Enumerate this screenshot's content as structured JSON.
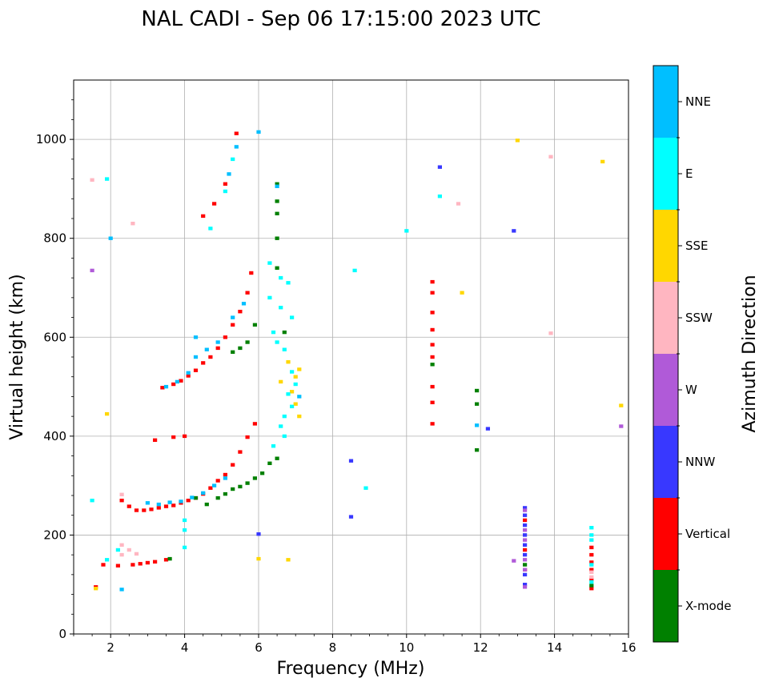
{
  "chart_data": {
    "type": "scatter",
    "title": "NAL CADI - Sep 06 17:15:00 2023 UTC",
    "xlabel": "Frequency (MHz)",
    "ylabel": "Virtual height (km)",
    "xlim": [
      1,
      16
    ],
    "ylim": [
      0,
      1120
    ],
    "xticks": [
      2,
      4,
      6,
      8,
      10,
      12,
      14,
      16
    ],
    "yticks": [
      0,
      200,
      400,
      600,
      800,
      1000
    ],
    "grid": true,
    "colorbar": {
      "label": "Azimuth Direction",
      "categories": [
        {
          "name": "X-mode",
          "color": "#008000"
        },
        {
          "name": "Vertical",
          "color": "#ff0000"
        },
        {
          "name": "NNW",
          "color": "#3838ff"
        },
        {
          "name": "W",
          "color": "#b05ad8"
        },
        {
          "name": "SSW",
          "color": "#ffb6c1"
        },
        {
          "name": "SSE",
          "color": "#ffd700"
        },
        {
          "name": "E",
          "color": "#00ffff"
        },
        {
          "name": "NNE",
          "color": "#00bfff"
        }
      ]
    },
    "series": [
      {
        "name": "Vertical",
        "color": "#ff0000",
        "points": [
          [
            1.6,
            95
          ],
          [
            1.8,
            140
          ],
          [
            2.2,
            138
          ],
          [
            2.3,
            270
          ],
          [
            2.5,
            258
          ],
          [
            2.7,
            250
          ],
          [
            2.9,
            250
          ],
          [
            3.1,
            252
          ],
          [
            3.3,
            255
          ],
          [
            3.5,
            258
          ],
          [
            3.7,
            260
          ],
          [
            3.9,
            265
          ],
          [
            4.1,
            270
          ],
          [
            4.3,
            275
          ],
          [
            4.5,
            283
          ],
          [
            4.7,
            295
          ],
          [
            4.9,
            310
          ],
          [
            5.1,
            322
          ],
          [
            5.3,
            342
          ],
          [
            5.5,
            368
          ],
          [
            5.7,
            398
          ],
          [
            5.9,
            425
          ],
          [
            2.6,
            140
          ],
          [
            2.8,
            142
          ],
          [
            3.0,
            144
          ],
          [
            3.2,
            146
          ],
          [
            3.5,
            150
          ],
          [
            3.4,
            498
          ],
          [
            3.7,
            505
          ],
          [
            3.9,
            512
          ],
          [
            4.1,
            522
          ],
          [
            4.3,
            533
          ],
          [
            4.5,
            548
          ],
          [
            4.7,
            560
          ],
          [
            4.9,
            578
          ],
          [
            5.1,
            600
          ],
          [
            5.3,
            625
          ],
          [
            5.5,
            652
          ],
          [
            5.7,
            690
          ],
          [
            5.8,
            730
          ],
          [
            4.5,
            845
          ],
          [
            4.8,
            870
          ],
          [
            5.1,
            910
          ],
          [
            5.4,
            1012
          ],
          [
            10.7,
            712
          ],
          [
            10.7,
            690
          ],
          [
            10.7,
            650
          ],
          [
            10.7,
            615
          ],
          [
            10.7,
            585
          ],
          [
            10.7,
            560
          ],
          [
            10.7,
            500
          ],
          [
            10.7,
            468
          ],
          [
            10.7,
            425
          ],
          [
            13.2,
            230
          ],
          [
            13.2,
            170
          ],
          [
            13.2,
            130
          ],
          [
            15.0,
            175
          ],
          [
            15.0,
            160
          ],
          [
            15.0,
            145
          ],
          [
            15.0,
            130
          ],
          [
            15.0,
            110
          ],
          [
            15.0,
            92
          ],
          [
            4.0,
            400
          ],
          [
            3.7,
            398
          ],
          [
            3.2,
            392
          ]
        ]
      },
      {
        "name": "X-mode",
        "color": "#008000",
        "points": [
          [
            4.3,
            275
          ],
          [
            4.6,
            262
          ],
          [
            4.9,
            275
          ],
          [
            5.1,
            283
          ],
          [
            5.3,
            293
          ],
          [
            5.5,
            298
          ],
          [
            5.7,
            305
          ],
          [
            5.9,
            315
          ],
          [
            6.1,
            325
          ],
          [
            6.3,
            345
          ],
          [
            6.5,
            355
          ],
          [
            5.3,
            570
          ],
          [
            5.5,
            578
          ],
          [
            5.7,
            590
          ],
          [
            5.9,
            625
          ],
          [
            6.5,
            910
          ],
          [
            6.5,
            875
          ],
          [
            6.5,
            850
          ],
          [
            6.5,
            800
          ],
          [
            6.5,
            740
          ],
          [
            6.7,
            610
          ],
          [
            10.7,
            545
          ],
          [
            11.9,
            492
          ],
          [
            11.9,
            465
          ],
          [
            11.9,
            372
          ],
          [
            3.6,
            152
          ],
          [
            15.0,
            98
          ],
          [
            13.2,
            140
          ]
        ]
      },
      {
        "name": "NNW",
        "color": "#3838ff",
        "points": [
          [
            13.2,
            255
          ],
          [
            13.2,
            240
          ],
          [
            13.2,
            220
          ],
          [
            13.2,
            200
          ],
          [
            13.2,
            180
          ],
          [
            13.2,
            160
          ],
          [
            13.2,
            120
          ],
          [
            13.2,
            100
          ],
          [
            8.5,
            237
          ],
          [
            8.5,
            350
          ],
          [
            12.9,
            815
          ],
          [
            10.9,
            944
          ],
          [
            6.0,
            202
          ],
          [
            12.2,
            415
          ]
        ]
      },
      {
        "name": "W",
        "color": "#b05ad8",
        "points": [
          [
            13.2,
            250
          ],
          [
            13.2,
            210
          ],
          [
            13.2,
            190
          ],
          [
            13.2,
            150
          ],
          [
            13.2,
            130
          ],
          [
            13.2,
            95
          ],
          [
            12.9,
            148
          ],
          [
            15.8,
            420
          ],
          [
            1.5,
            735
          ]
        ]
      },
      {
        "name": "SSW",
        "color": "#ffb6c1",
        "points": [
          [
            2.3,
            180
          ],
          [
            2.5,
            170
          ],
          [
            2.3,
            160
          ],
          [
            2.7,
            162
          ],
          [
            15.0,
            125
          ],
          [
            15.0,
            115
          ],
          [
            13.9,
            965
          ],
          [
            13.9,
            608
          ],
          [
            11.4,
            870
          ],
          [
            2.6,
            830
          ],
          [
            1.5,
            918
          ],
          [
            2.3,
            282
          ]
        ]
      },
      {
        "name": "SSE",
        "color": "#ffd700",
        "points": [
          [
            6.9,
            490
          ],
          [
            7.0,
            465
          ],
          [
            7.1,
            440
          ],
          [
            7.0,
            520
          ],
          [
            6.8,
            550
          ],
          [
            7.1,
            535
          ],
          [
            6.6,
            510
          ],
          [
            6.0,
            152
          ],
          [
            6.8,
            150
          ],
          [
            15.3,
            955
          ],
          [
            13.0,
            998
          ],
          [
            15.8,
            462
          ],
          [
            11.5,
            690
          ],
          [
            1.6,
            92
          ],
          [
            1.9,
            445
          ]
        ]
      },
      {
        "name": "E",
        "color": "#00ffff",
        "points": [
          [
            6.3,
            750
          ],
          [
            6.6,
            720
          ],
          [
            6.8,
            710
          ],
          [
            6.3,
            680
          ],
          [
            6.6,
            660
          ],
          [
            6.9,
            640
          ],
          [
            6.4,
            610
          ],
          [
            6.5,
            590
          ],
          [
            6.7,
            575
          ],
          [
            6.9,
            530
          ],
          [
            7.0,
            505
          ],
          [
            6.8,
            485
          ],
          [
            6.9,
            460
          ],
          [
            6.7,
            440
          ],
          [
            6.6,
            420
          ],
          [
            6.7,
            400
          ],
          [
            6.4,
            380
          ],
          [
            15.0,
            215
          ],
          [
            15.0,
            200
          ],
          [
            15.0,
            190
          ],
          [
            15.0,
            140
          ],
          [
            15.0,
            105
          ],
          [
            4.0,
            230
          ],
          [
            4.0,
            210
          ],
          [
            4.0,
            175
          ],
          [
            2.2,
            170
          ],
          [
            1.9,
            150
          ],
          [
            5.3,
            960
          ],
          [
            5.1,
            895
          ],
          [
            4.7,
            820
          ],
          [
            10.0,
            815
          ],
          [
            10.9,
            885
          ],
          [
            8.9,
            295
          ],
          [
            8.6,
            735
          ],
          [
            1.5,
            270
          ],
          [
            1.9,
            920
          ]
        ]
      },
      {
        "name": "NNE",
        "color": "#00bfff",
        "points": [
          [
            3.0,
            265
          ],
          [
            3.3,
            262
          ],
          [
            3.6,
            266
          ],
          [
            3.9,
            268
          ],
          [
            4.2,
            276
          ],
          [
            4.5,
            285
          ],
          [
            4.8,
            300
          ],
          [
            5.1,
            315
          ],
          [
            3.5,
            500
          ],
          [
            3.8,
            510
          ],
          [
            4.1,
            528
          ],
          [
            4.3,
            560
          ],
          [
            4.3,
            600
          ],
          [
            4.6,
            575
          ],
          [
            4.9,
            590
          ],
          [
            5.3,
            640
          ],
          [
            5.6,
            668
          ],
          [
            5.4,
            985
          ],
          [
            5.2,
            930
          ],
          [
            6.5,
            905
          ],
          [
            6.0,
            1015
          ],
          [
            2.3,
            90
          ],
          [
            2.0,
            800
          ],
          [
            7.1,
            480
          ],
          [
            11.9,
            422
          ]
        ]
      }
    ]
  }
}
